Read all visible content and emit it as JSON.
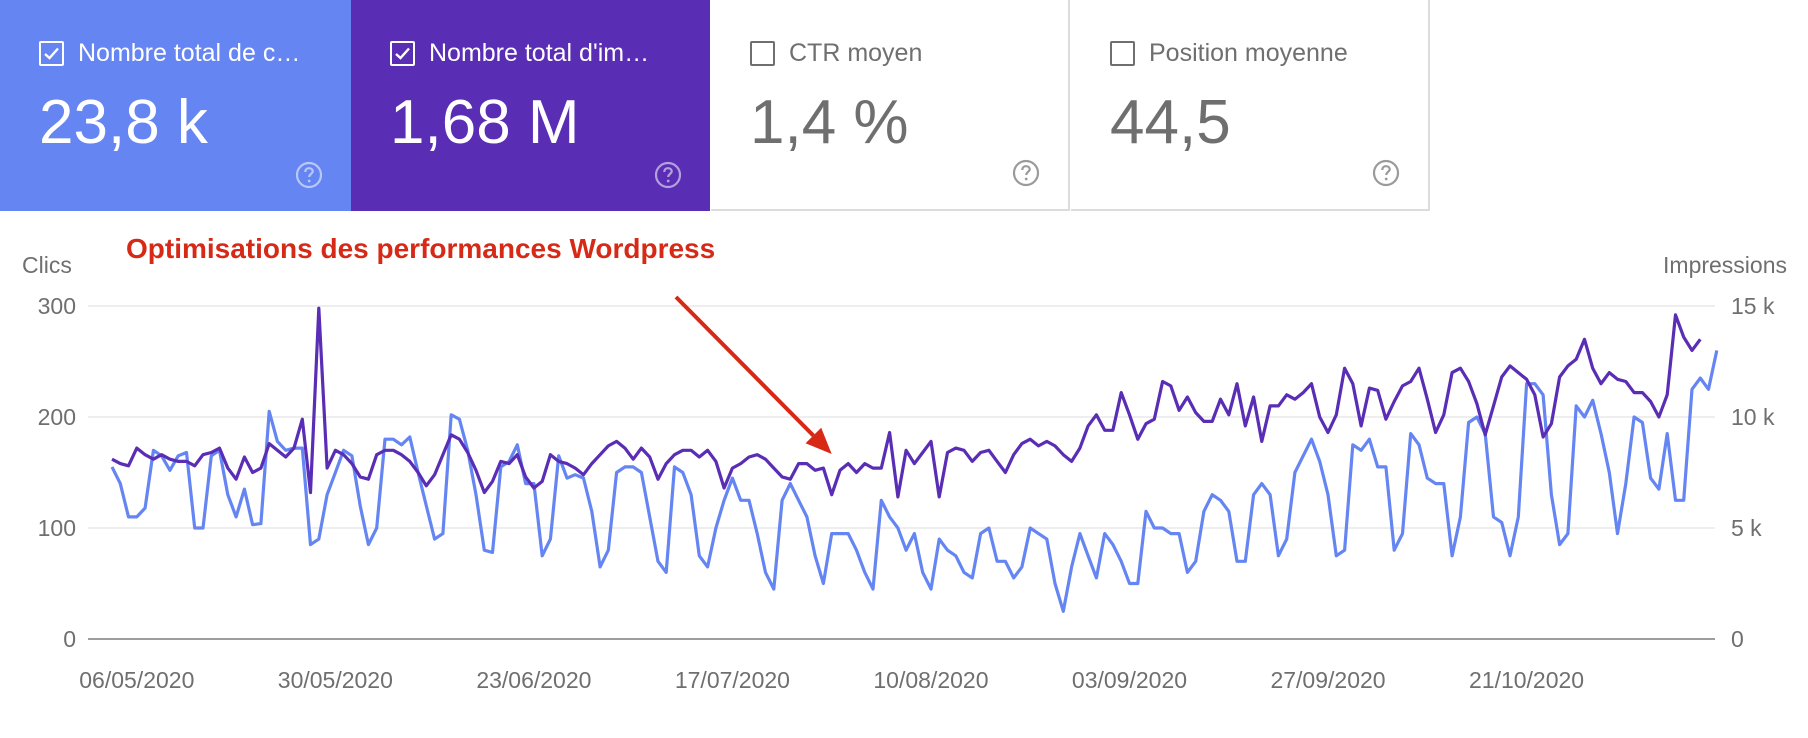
{
  "cards": [
    {
      "id": "clicks",
      "label": "Nombre total de clics",
      "value": "23,8 k",
      "checked": true,
      "color": "#6585f2"
    },
    {
      "id": "impressions",
      "label": "Nombre total d'impressions",
      "value": "1,68 M",
      "checked": true,
      "color": "#5a2db5"
    },
    {
      "id": "ctr",
      "label": "CTR moyen",
      "value": "1,4 %",
      "checked": false
    },
    {
      "id": "position",
      "label": "Position moyenne",
      "value": "44,5",
      "checked": false
    }
  ],
  "annotation": {
    "text": "Optimisations des performances Wordpress",
    "arrow_date": "29/07/2020",
    "color": "#d62a17"
  },
  "chart_data": {
    "type": "line",
    "title": "",
    "left_axis": {
      "label": "Clics",
      "range": [
        0,
        300
      ],
      "ticks": [
        "0",
        "100",
        "200",
        "300"
      ]
    },
    "right_axis": {
      "label": "Impressions",
      "range": [
        0,
        15000
      ],
      "ticks": [
        "0",
        "5 k",
        "10 k",
        "15 k"
      ]
    },
    "x_tick_labels": [
      "06/05/2020",
      "30/05/2020",
      "23/06/2020",
      "17/07/2020",
      "10/08/2020",
      "03/09/2020",
      "27/09/2020",
      "21/10/2020"
    ],
    "x_start": "03/05/2020",
    "x_end": "10/11/2020",
    "grid": true,
    "series": [
      {
        "name": "Clics",
        "axis": "left",
        "color": "#6585f2",
        "values": [
          155,
          140,
          110,
          110,
          118,
          170,
          165,
          152,
          165,
          168,
          100,
          100,
          165,
          170,
          130,
          110,
          135,
          103,
          104,
          205,
          178,
          170,
          172,
          172,
          85,
          90,
          130,
          150,
          170,
          165,
          120,
          85,
          100,
          180,
          180,
          175,
          182,
          150,
          120,
          90,
          95,
          202,
          198,
          170,
          130,
          80,
          78,
          155,
          160,
          175,
          140,
          140,
          75,
          90,
          165,
          145,
          148,
          145,
          115,
          65,
          80,
          150,
          155,
          155,
          150,
          110,
          70,
          60,
          155,
          150,
          130,
          75,
          65,
          100,
          125,
          145,
          125,
          125,
          95,
          60,
          45,
          125,
          140,
          125,
          110,
          75,
          50,
          95,
          95,
          95,
          80,
          60,
          45,
          125,
          110,
          100,
          80,
          95,
          60,
          45,
          90,
          80,
          75,
          60,
          55,
          95,
          100,
          70,
          70,
          55,
          65,
          100,
          95,
          90,
          50,
          25,
          65,
          95,
          75,
          55,
          95,
          85,
          70,
          50,
          50,
          115,
          100,
          100,
          95,
          95,
          60,
          70,
          115,
          130,
          125,
          115,
          70,
          70,
          130,
          140,
          130,
          75,
          90,
          150,
          165,
          180,
          160,
          130,
          75,
          80,
          175,
          170,
          180,
          155,
          155,
          80,
          95,
          185,
          175,
          145,
          140,
          140,
          75,
          110,
          195,
          200,
          185,
          110,
          105,
          75,
          110,
          230,
          230,
          220,
          130,
          85,
          95,
          210,
          200,
          215,
          185,
          150,
          95,
          140,
          200,
          195,
          145,
          135,
          185,
          125,
          125,
          225,
          235,
          225,
          260
        ]
      },
      {
        "name": "Impressions",
        "axis": "right",
        "color": "#5a2db5",
        "values": [
          8100,
          7900,
          7800,
          8600,
          8300,
          8100,
          8300,
          8100,
          8000,
          8000,
          7800,
          8300,
          8400,
          8600,
          7700,
          7200,
          8200,
          7500,
          7700,
          8800,
          8500,
          8200,
          8600,
          9900,
          6600,
          14900,
          7700,
          8500,
          8300,
          7900,
          7300,
          7200,
          8300,
          8500,
          8500,
          8300,
          8000,
          7500,
          6900,
          7400,
          8300,
          9200,
          9000,
          8400,
          7600,
          6600,
          7100,
          8000,
          7900,
          8300,
          7300,
          6800,
          7100,
          8300,
          8000,
          7900,
          7700,
          7400,
          7900,
          8300,
          8700,
          8900,
          8600,
          8100,
          8600,
          8200,
          7200,
          7900,
          8300,
          8500,
          8500,
          8200,
          8500,
          8000,
          6800,
          7700,
          7900,
          8200,
          8300,
          8100,
          7700,
          7300,
          7200,
          7900,
          7900,
          7600,
          7700,
          6500,
          7600,
          7900,
          7500,
          7900,
          7700,
          7700,
          9300,
          6400,
          8500,
          7900,
          8400,
          8900,
          6400,
          8400,
          8600,
          8500,
          8000,
          8400,
          8500,
          8000,
          7500,
          8300,
          8800,
          9000,
          8700,
          8900,
          8700,
          8300,
          8000,
          8600,
          9600,
          10100,
          9400,
          9400,
          11100,
          10100,
          9000,
          9700,
          9900,
          11600,
          11400,
          10300,
          10900,
          10200,
          9800,
          9800,
          10800,
          10100,
          11500,
          9600,
          10900,
          8900,
          10500,
          10500,
          11000,
          10800,
          11100,
          11500,
          10000,
          9300,
          10100,
          12200,
          11500,
          9600,
          11300,
          11200,
          9900,
          10700,
          11400,
          11600,
          12200,
          10800,
          9300,
          10100,
          12000,
          12200,
          11600,
          10600,
          9200,
          10500,
          11800,
          12300,
          12000,
          11700,
          11000,
          9100,
          9700,
          11800,
          12300,
          12600,
          13500,
          12200,
          11500,
          12000,
          11700,
          11600,
          11100,
          11100,
          10700,
          10000,
          11000,
          14600,
          13600,
          13000,
          13500
        ]
      }
    ]
  }
}
